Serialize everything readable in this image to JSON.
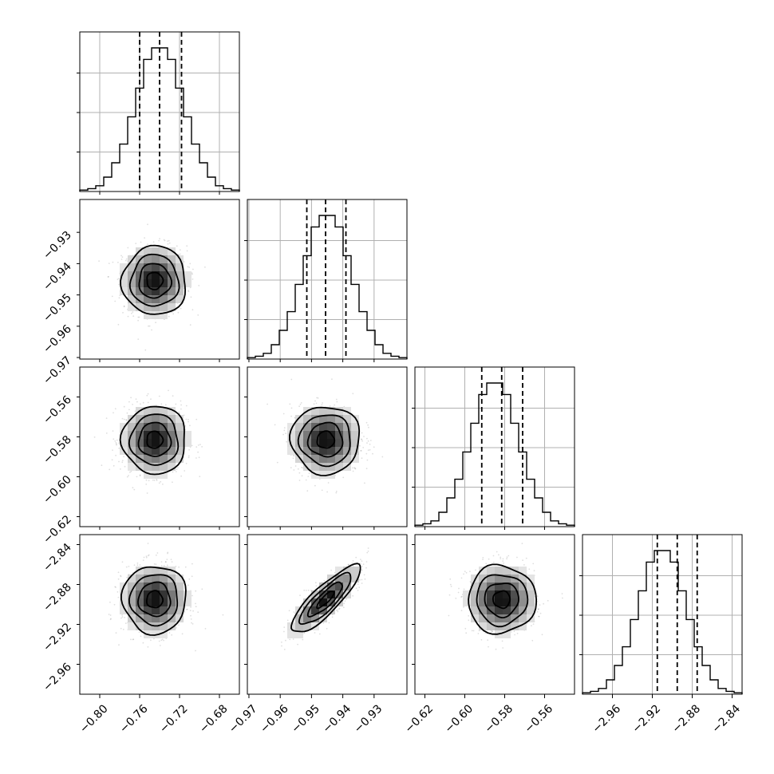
{
  "chart_data": {
    "type": "corner",
    "title": "",
    "grid": true,
    "quantile_lines": "dashed",
    "parameters": [
      {
        "range": [
          -0.82,
          -0.66
        ],
        "ticks": [
          -0.8,
          -0.76,
          -0.72,
          -0.68
        ],
        "tick_labels": [
          "−0.80",
          "−0.76",
          "−0.72",
          "−0.68"
        ],
        "quantiles": [
          -0.76,
          -0.74,
          -0.718
        ],
        "hist": {
          "edges_start": -0.82,
          "bin_width": 0.008,
          "counts": [
            1,
            2,
            4,
            10,
            20,
            33,
            52,
            72,
            92,
            100,
            100,
            92,
            72,
            52,
            33,
            20,
            10,
            4,
            2,
            1
          ]
        }
      },
      {
        "range": [
          -0.9705,
          -0.9195
        ],
        "ticks": [
          -0.97,
          -0.96,
          -0.95,
          -0.94,
          -0.93
        ],
        "tick_labels": [
          "−0.97",
          "−0.96",
          "−0.95",
          "−0.94",
          "−0.93"
        ],
        "quantiles": [
          -0.9515,
          -0.9455,
          -0.939
        ],
        "hist": {
          "edges_start": -0.9705,
          "bin_width": 0.00255,
          "counts": [
            1,
            2,
            4,
            10,
            20,
            33,
            52,
            72,
            92,
            100,
            100,
            92,
            72,
            52,
            33,
            20,
            10,
            4,
            2,
            1
          ]
        }
      },
      {
        "range": [
          -0.625,
          -0.545
        ],
        "ticks": [
          -0.62,
          -0.6,
          -0.58,
          -0.56
        ],
        "tick_labels": [
          "−0.62",
          "−0.60",
          "−0.58",
          "−0.56"
        ],
        "quantiles": [
          -0.5915,
          -0.5815,
          -0.571
        ],
        "hist": {
          "edges_start": -0.625,
          "bin_width": 0.004,
          "counts": [
            1,
            2,
            4,
            10,
            20,
            33,
            52,
            72,
            92,
            100,
            100,
            92,
            72,
            52,
            33,
            20,
            10,
            4,
            2,
            1
          ]
        }
      },
      {
        "range": [
          -2.99,
          -2.83
        ],
        "ticks": [
          -2.96,
          -2.92,
          -2.88,
          -2.84
        ],
        "tick_labels": [
          "−2.96",
          "−2.92",
          "−2.88",
          "−2.84"
        ],
        "quantiles": [
          -2.915,
          -2.895,
          -2.875
        ],
        "hist": {
          "edges_start": -2.99,
          "bin_width": 0.008,
          "counts": [
            1,
            2,
            4,
            10,
            20,
            33,
            52,
            72,
            92,
            100,
            100,
            92,
            72,
            52,
            33,
            20,
            10,
            4,
            2,
            1
          ]
        }
      }
    ],
    "pairs": [
      {
        "x": 0,
        "y": 1,
        "center": [
          -0.745,
          -0.9455
        ],
        "sigma": [
          0.016,
          0.0055
        ],
        "corr": 0.0
      },
      {
        "x": 0,
        "y": 2,
        "center": [
          -0.745,
          -0.5815
        ],
        "sigma": [
          0.016,
          0.0085
        ],
        "corr": 0.0
      },
      {
        "x": 1,
        "y": 2,
        "center": [
          -0.9455,
          -0.5815
        ],
        "sigma": [
          0.0055,
          0.0085
        ],
        "corr": 0.0
      },
      {
        "x": 0,
        "y": 3,
        "center": [
          -0.745,
          -2.895
        ],
        "sigma": [
          0.016,
          0.017
        ],
        "corr": 0.0
      },
      {
        "x": 1,
        "y": 3,
        "center": [
          -0.9455,
          -2.895
        ],
        "sigma": [
          0.0055,
          0.017
        ],
        "corr": 0.85
      },
      {
        "x": 2,
        "y": 3,
        "center": [
          -0.5815,
          -2.895
        ],
        "sigma": [
          0.0085,
          0.017
        ],
        "corr": 0.0
      }
    ],
    "contour_levels_sigma": [
      0.5,
      1.0,
      1.5,
      2.0
    ]
  }
}
